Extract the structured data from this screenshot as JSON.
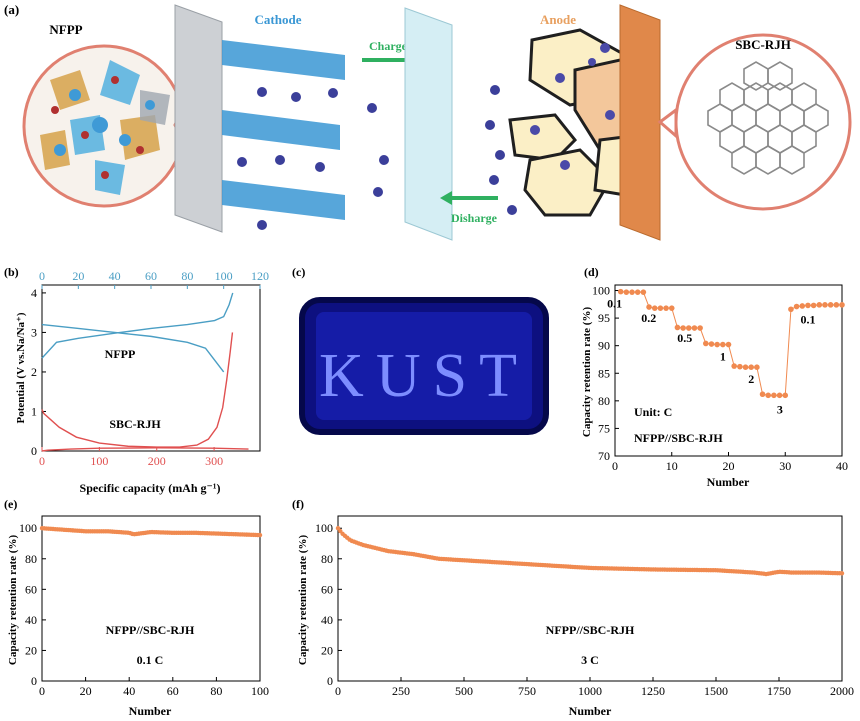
{
  "panel_a": {
    "tag": "(a)",
    "nfpp": "NFPP",
    "cathode": "Cathode",
    "charge": "Charge",
    "anode": "Anode",
    "sbc": "SBC-RJH",
    "disharge": "Disharge",
    "colors": {
      "cathode": "#3a97d4",
      "anode_label": "#e8a060",
      "arrow": "#2fb060",
      "collector": "#e0884a",
      "ion": "#3b3f9a"
    }
  },
  "panel_b": {
    "tag": "(b)"
  },
  "panel_c": {
    "tag": "(c)",
    "led_text": "KUST"
  },
  "panel_d": {
    "tag": "(d)"
  },
  "panel_e": {
    "tag": "(e)"
  },
  "panel_f": {
    "tag": "(f)"
  },
  "chart_data": [
    {
      "id": "b",
      "type": "line",
      "xlabel": "Specific capacity (mAh g⁻¹)",
      "ylabel": "Potential (V vs.Na/Na⁺)",
      "xlim": [
        0,
        380
      ],
      "xticks": [
        0,
        100,
        200,
        300
      ],
      "top_xlim": [
        0,
        120
      ],
      "top_xticks": [
        0,
        20,
        40,
        60,
        80,
        100,
        120
      ],
      "ylim": [
        0,
        4.2
      ],
      "yticks": [
        0,
        1,
        2,
        3,
        4
      ],
      "annotations": [
        "NFPP",
        "SBC-RJH"
      ],
      "series": [
        {
          "axis": "top",
          "color": "#4a9ec4",
          "x": [
            0,
            8,
            20,
            40,
            60,
            80,
            95,
            100,
            103,
            105
          ],
          "y": [
            2.35,
            2.75,
            2.85,
            2.98,
            3.1,
            3.2,
            3.3,
            3.4,
            3.7,
            4.0
          ]
        },
        {
          "axis": "top",
          "color": "#4a9ec4",
          "x": [
            0,
            20,
            40,
            60,
            80,
            90,
            95,
            100
          ],
          "y": [
            3.2,
            3.1,
            3.0,
            2.9,
            2.75,
            2.6,
            2.3,
            2.0
          ]
        },
        {
          "axis": "bottom",
          "color": "#e05050",
          "x": [
            0,
            3,
            30,
            60,
            100,
            150,
            200,
            240,
            270,
            290,
            305,
            315,
            322,
            328,
            332
          ],
          "y": [
            1.05,
            0.95,
            0.6,
            0.35,
            0.2,
            0.12,
            0.1,
            0.1,
            0.15,
            0.3,
            0.6,
            1.1,
            1.8,
            2.5,
            3.0
          ]
        },
        {
          "axis": "bottom",
          "color": "#e05050",
          "x": [
            0,
            10,
            50,
            100,
            200,
            300,
            360
          ],
          "y": [
            0.0,
            0.02,
            0.05,
            0.07,
            0.08,
            0.07,
            0.05
          ]
        }
      ]
    },
    {
      "id": "d",
      "type": "scatter",
      "xlabel": "Number",
      "ylabel": "Capacity retention rate (%)",
      "xlim": [
        0,
        40
      ],
      "xticks": [
        0,
        10,
        20,
        30,
        40
      ],
      "ylim": [
        70,
        101
      ],
      "yticks": [
        70,
        75,
        80,
        85,
        90,
        95,
        100
      ],
      "unit_label": "Unit: C",
      "legend": "NFPP//SBC-RJH",
      "rate_labels": [
        "0.1",
        "0.2",
        "0.5",
        "1",
        "2",
        "3",
        "0.1"
      ],
      "color": "#f08a50",
      "x": [
        1,
        2,
        3,
        4,
        5,
        6,
        7,
        8,
        9,
        10,
        11,
        12,
        13,
        14,
        15,
        16,
        17,
        18,
        19,
        20,
        21,
        22,
        23,
        24,
        25,
        26,
        27,
        28,
        29,
        30,
        31,
        32,
        33,
        34,
        35,
        36,
        37,
        38,
        39,
        40
      ],
      "y": [
        99.8,
        99.7,
        99.7,
        99.7,
        99.7,
        97.0,
        96.8,
        96.8,
        96.8,
        96.8,
        93.3,
        93.2,
        93.2,
        93.2,
        93.2,
        90.4,
        90.3,
        90.2,
        90.2,
        90.2,
        86.3,
        86.2,
        86.1,
        86.1,
        86.1,
        81.2,
        81.0,
        81.0,
        81.0,
        81.0,
        96.6,
        97.1,
        97.2,
        97.3,
        97.3,
        97.4,
        97.4,
        97.4,
        97.4,
        97.4
      ]
    },
    {
      "id": "e",
      "type": "scatter",
      "xlabel": "Number",
      "ylabel": "Capacity retention rate (%)",
      "xlim": [
        0,
        100
      ],
      "xticks": [
        0,
        20,
        40,
        60,
        80,
        100
      ],
      "ylim": [
        0,
        108
      ],
      "yticks": [
        0,
        20,
        40,
        60,
        80,
        100
      ],
      "legend": "NFPP//SBC-RJH",
      "rate": "0.1 C",
      "color": "#f08a50",
      "x": [
        0,
        10,
        20,
        30,
        40,
        42,
        50,
        60,
        70,
        80,
        90,
        100
      ],
      "y": [
        100,
        99,
        98,
        98,
        97,
        96,
        97.5,
        97,
        97,
        96.5,
        96,
        95.5
      ]
    },
    {
      "id": "f",
      "type": "scatter",
      "xlabel": "Number",
      "ylabel": "Capacity retention rate (%)",
      "xlim": [
        0,
        2000
      ],
      "xticks": [
        0,
        250,
        500,
        750,
        1000,
        1250,
        1500,
        1750,
        2000
      ],
      "ylim": [
        0,
        108
      ],
      "yticks": [
        0,
        20,
        40,
        60,
        80,
        100
      ],
      "legend": "NFPP//SBC-RJH",
      "rate": "3 C",
      "color": "#f08a50",
      "x": [
        0,
        20,
        50,
        100,
        150,
        200,
        250,
        300,
        400,
        500,
        600,
        700,
        800,
        900,
        1000,
        1250,
        1500,
        1650,
        1700,
        1750,
        1800,
        1900,
        2000
      ],
      "y": [
        100,
        96,
        92,
        89,
        87,
        85,
        84,
        83,
        80,
        79,
        78,
        77,
        76,
        75,
        74,
        73,
        72.5,
        71,
        70,
        71.5,
        71,
        71,
        70.5
      ]
    }
  ]
}
